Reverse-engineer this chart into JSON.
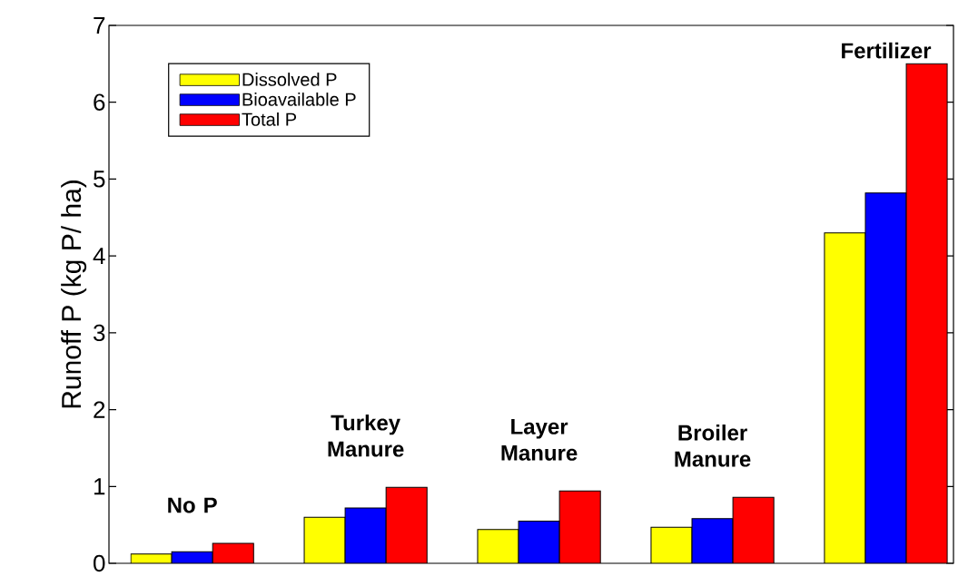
{
  "chart_data": {
    "type": "bar",
    "ylabel": "Runoff P (kg P/ ha)",
    "categories": [
      "No P",
      "Turkey Manure",
      "Layer Manure",
      "Broiler Manure",
      "Fertilizer"
    ],
    "series": [
      {
        "name": "Dissolved P",
        "color": "#ffff00",
        "values": [
          0.12,
          0.6,
          0.44,
          0.47,
          4.3
        ]
      },
      {
        "name": "Bioavailable P",
        "color": "#0000ff",
        "values": [
          0.15,
          0.72,
          0.55,
          0.58,
          4.82
        ]
      },
      {
        "name": "Total P",
        "color": "#ff0000",
        "values": [
          0.26,
          0.99,
          0.94,
          0.86,
          6.5
        ]
      }
    ],
    "ylim": [
      0,
      7
    ],
    "yticks": [
      0,
      1,
      2,
      3,
      4,
      5,
      6,
      7
    ],
    "grid": false,
    "legend": "top left"
  }
}
